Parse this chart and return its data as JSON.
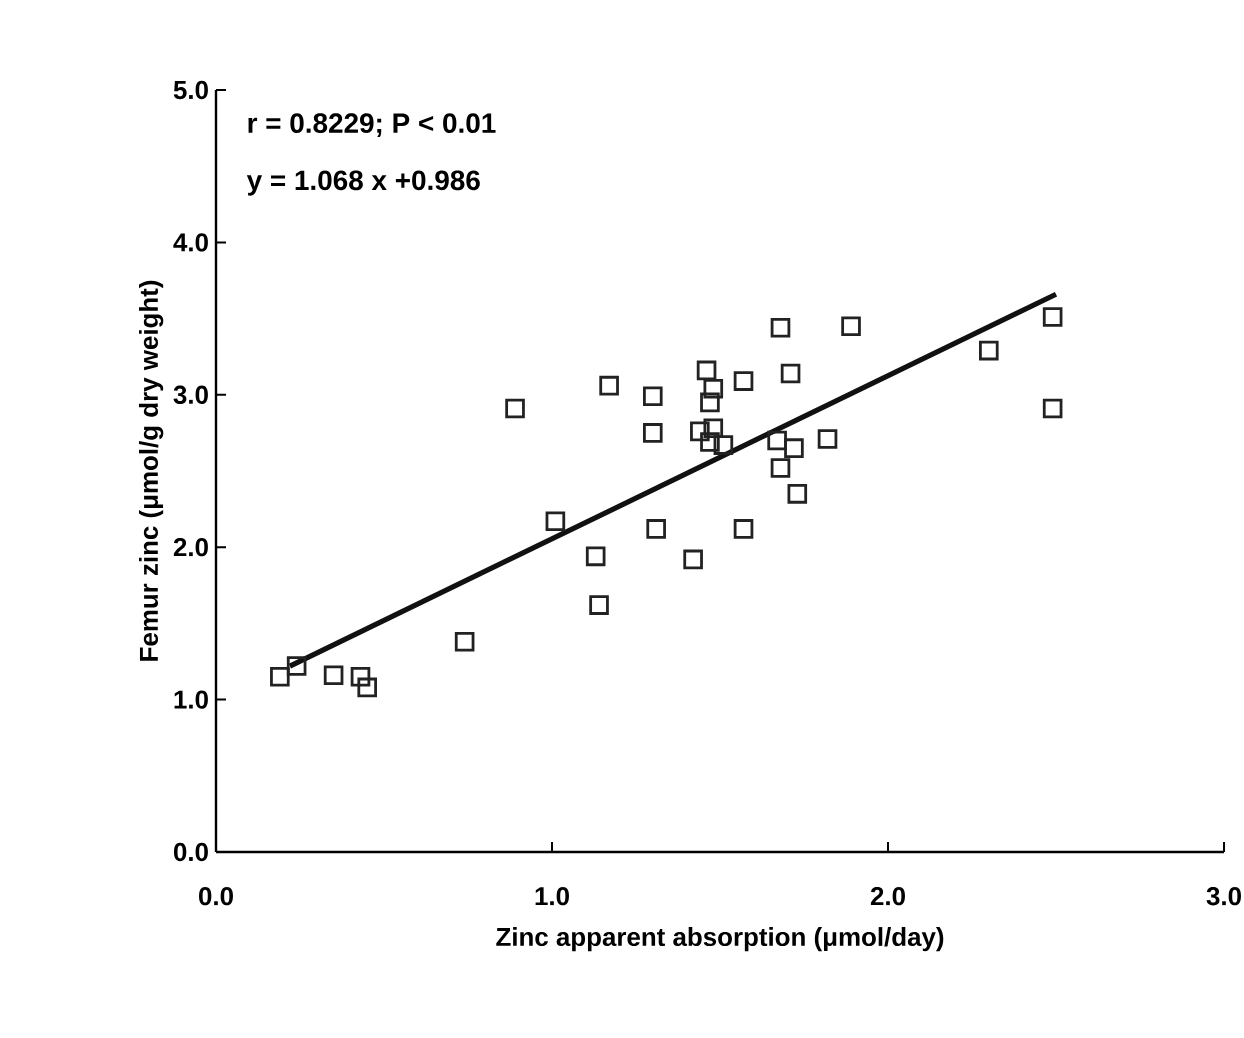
{
  "chart_data": {
    "type": "scatter",
    "xlabel": "Zinc apparent absorption (μmol/day)",
    "ylabel": "Femur zinc (μmol/g dry weight)",
    "annotations": [
      "r = 0.8229; P < 0.01",
      "y = 1.068 x +0.986"
    ],
    "xlim": [
      0,
      3
    ],
    "ylim": [
      0,
      5
    ],
    "xticks": [
      {
        "value": 0,
        "label": "0.0"
      },
      {
        "value": 1,
        "label": "1.0"
      },
      {
        "value": 2,
        "label": "2.0"
      },
      {
        "value": 3,
        "label": "3.0"
      }
    ],
    "yticks": [
      {
        "value": 0,
        "label": "0.0"
      },
      {
        "value": 1,
        "label": "1.0"
      },
      {
        "value": 2,
        "label": "2.0"
      },
      {
        "value": 3,
        "label": "3.0"
      },
      {
        "value": 4,
        "label": "4.0"
      },
      {
        "value": 5,
        "label": "5.0"
      }
    ],
    "series": [
      {
        "color": "#222222",
        "marker": "square",
        "x": [
          0.19,
          0.24,
          0.35,
          0.43,
          0.45,
          0.74,
          0.89,
          1.01,
          1.13,
          1.14,
          1.17,
          1.3,
          1.3,
          1.31,
          1.42,
          1.68,
          1.89,
          1.46,
          1.48,
          1.47,
          1.57,
          1.71,
          1.44,
          1.48,
          1.47,
          1.51,
          1.67,
          1.72,
          1.82,
          1.68,
          1.73,
          1.57,
          2.3,
          2.49,
          2.49
        ],
        "values": [
          1.15,
          1.22,
          1.16,
          1.15,
          1.08,
          1.38,
          2.91,
          2.17,
          1.94,
          1.62,
          3.06,
          2.99,
          2.75,
          2.12,
          1.92,
          3.44,
          3.45,
          3.16,
          3.04,
          2.95,
          3.09,
          3.14,
          2.76,
          2.78,
          2.69,
          2.67,
          2.7,
          2.65,
          2.71,
          2.52,
          2.35,
          2.12,
          3.29,
          3.51,
          2.91
        ]
      },
      {
        "type": "line",
        "color": "#111111",
        "marker": "none",
        "line_style": "solid",
        "x": [
          0.22,
          2.5
        ],
        "values": [
          1.22,
          3.66
        ]
      }
    ]
  }
}
